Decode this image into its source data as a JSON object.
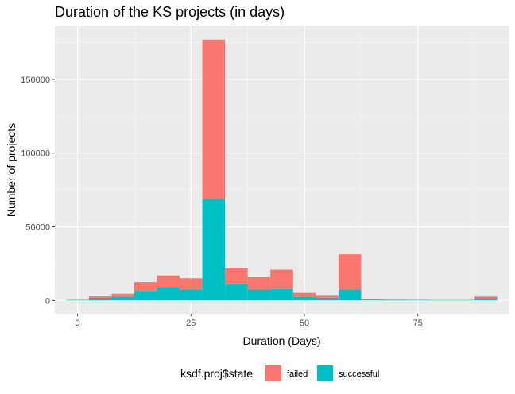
{
  "chart_data": {
    "type": "bar",
    "stacked": true,
    "title": "Duration of the KS projects (in days)",
    "xlabel": "Duration (Days)",
    "ylabel": "Number of projects",
    "xlim": [
      -5,
      95
    ],
    "ylim": [
      -9000,
      186000
    ],
    "bin_width": 5,
    "x_ticks": [
      0,
      25,
      50,
      75
    ],
    "y_ticks": [
      0,
      50000,
      100000,
      150000
    ],
    "grid": true,
    "legend": {
      "title": "ksdf.proj$state",
      "position": "bottom"
    },
    "bins": [
      {
        "center": 0,
        "failed": 300,
        "successful": 200
      },
      {
        "center": 5,
        "failed": 1000,
        "successful": 1800
      },
      {
        "center": 10,
        "failed": 2100,
        "successful": 2500
      },
      {
        "center": 15,
        "failed": 6000,
        "successful": 6500
      },
      {
        "center": 20,
        "failed": 7800,
        "successful": 9200
      },
      {
        "center": 25,
        "failed": 7600,
        "successful": 7500
      },
      {
        "center": 30,
        "failed": 108000,
        "successful": 69000
      },
      {
        "center": 35,
        "failed": 10800,
        "successful": 11000
      },
      {
        "center": 40,
        "failed": 8400,
        "successful": 7400
      },
      {
        "center": 45,
        "failed": 13100,
        "successful": 7800
      },
      {
        "center": 50,
        "failed": 2700,
        "successful": 2500
      },
      {
        "center": 55,
        "failed": 1300,
        "successful": 1900
      },
      {
        "center": 60,
        "failed": 23800,
        "successful": 7500
      },
      {
        "center": 65,
        "failed": 300,
        "successful": 400
      },
      {
        "center": 70,
        "failed": 300,
        "successful": 300
      },
      {
        "center": 75,
        "failed": 300,
        "successful": 200
      },
      {
        "center": 80,
        "failed": 200,
        "successful": 200
      },
      {
        "center": 85,
        "failed": 200,
        "successful": 200
      },
      {
        "center": 90,
        "failed": 1000,
        "successful": 1700
      }
    ],
    "series": [
      {
        "name": "failed",
        "color": "#F8766D"
      },
      {
        "name": "successful",
        "color": "#00BFC4"
      }
    ],
    "colors": {
      "panel_bg": "#EBEBEB",
      "grid_major": "#FFFFFF",
      "tick_label": "#4D4D4D"
    }
  }
}
